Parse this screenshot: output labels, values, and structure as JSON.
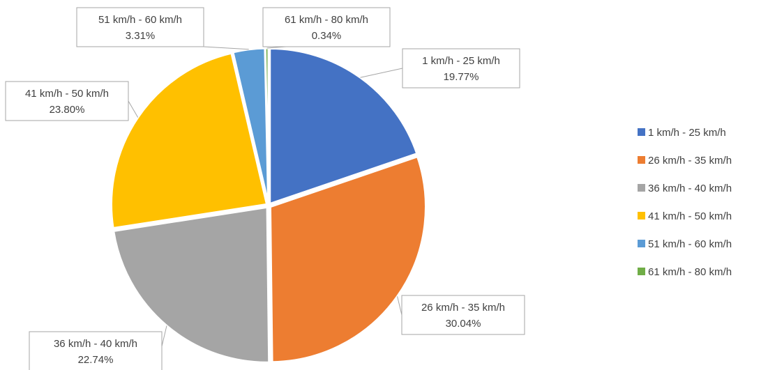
{
  "chart_data": {
    "type": "pie",
    "title": "",
    "legend_position": "right",
    "slices": [
      {
        "label": "1 km/h - 25 km/h",
        "value": 19.77,
        "value_label": "19.77%",
        "color": "#4472C4"
      },
      {
        "label": "26 km/h - 35 km/h",
        "value": 30.04,
        "value_label": "30.04%",
        "color": "#ED7D31"
      },
      {
        "label": "36 km/h - 40 km/h",
        "value": 22.74,
        "value_label": "22.74%",
        "color": "#A5A5A5"
      },
      {
        "label": "41 km/h - 50 km/h",
        "value": 23.8,
        "value_label": "23.80%",
        "color": "#FFC000"
      },
      {
        "label": "51 km/h - 60 km/h",
        "value": 3.31,
        "value_label": "3.31%",
        "color": "#5B9BD5"
      },
      {
        "label": "61 km/h - 80 km/h",
        "value": 0.34,
        "value_label": "0.34%",
        "color": "#70AD47"
      }
    ]
  }
}
